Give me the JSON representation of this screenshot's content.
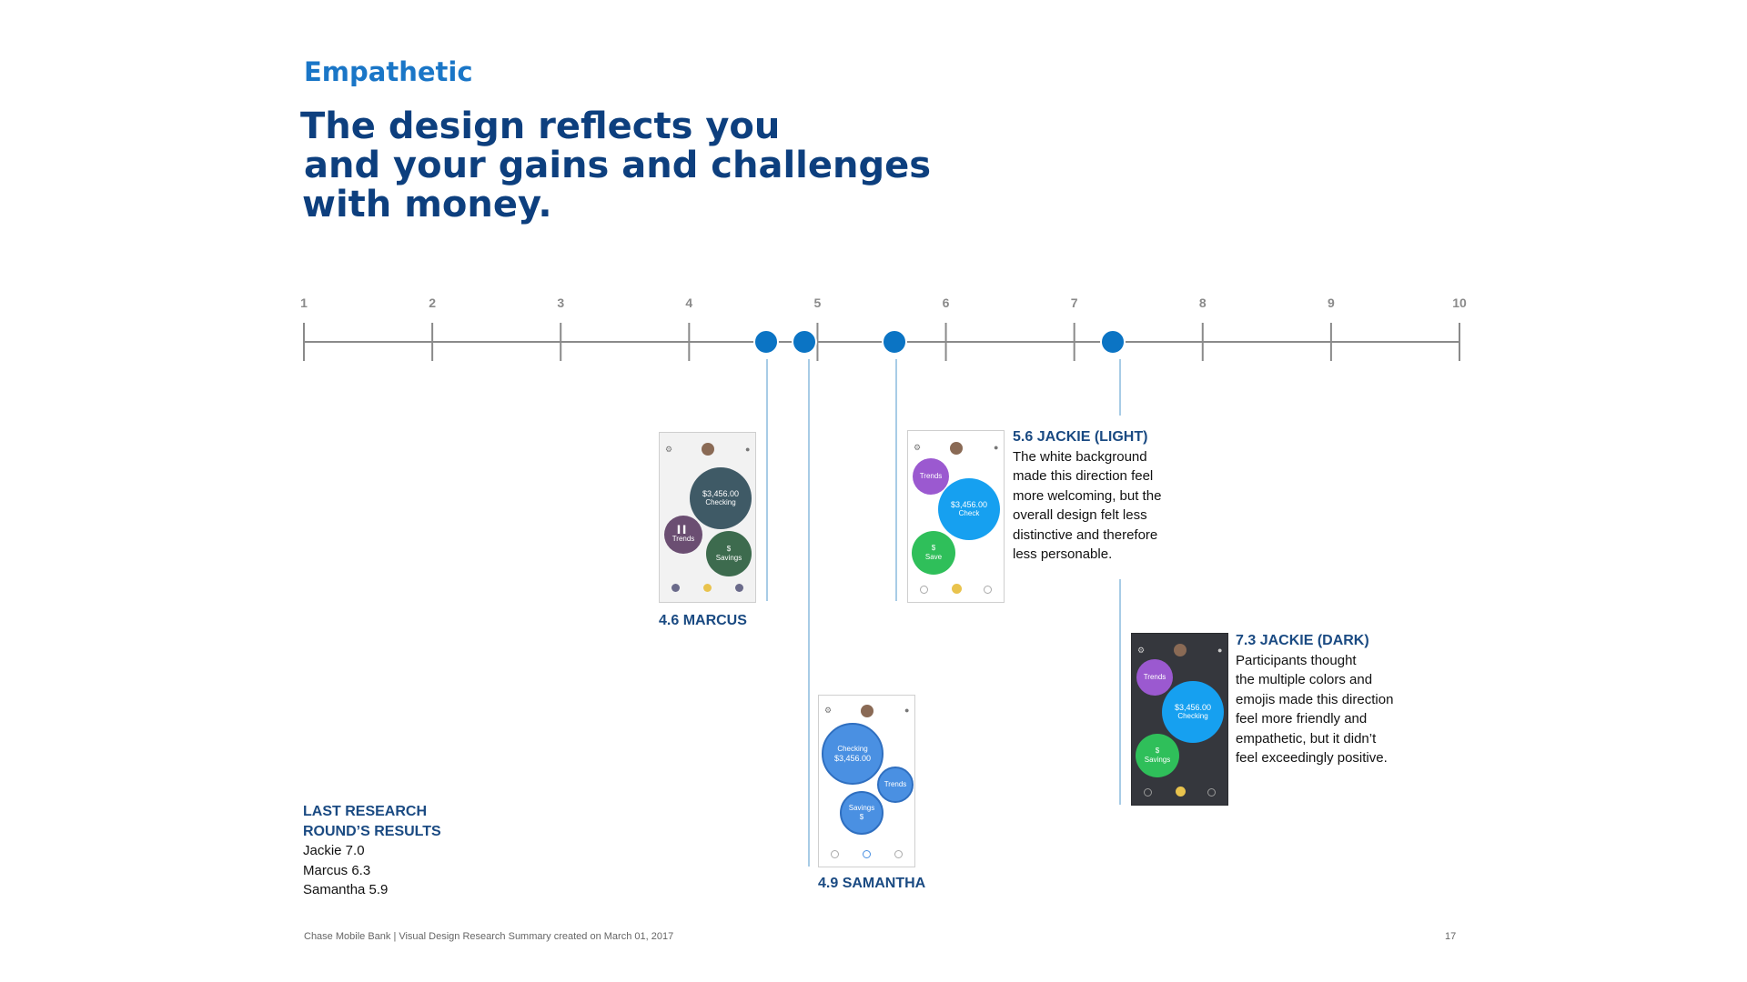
{
  "slide": {
    "eyebrow": "Empathetic",
    "headline": [
      "The design reflects you",
      "and your gains and challenges",
      "with money."
    ]
  },
  "scale": {
    "min": 1,
    "max": 10,
    "tick_labels": [
      "1",
      "2",
      "3",
      "4",
      "5",
      "6",
      "7",
      "8",
      "9",
      "10"
    ]
  },
  "markers": [
    {
      "name": "MARCUS",
      "score": 4.6,
      "label": "4.6 MARCUS"
    },
    {
      "name": "SAMANTHA",
      "score": 4.9,
      "label": "4.9 SAMANTHA"
    },
    {
      "name": "JACKIE (LIGHT)",
      "score": 5.6,
      "label": "5.6 JACKIE (LIGHT)"
    },
    {
      "name": "JACKIE (DARK)",
      "score": 7.3,
      "label": "7.3 JACKIE (DARK)"
    }
  ],
  "descriptions": {
    "jackie_light": [
      "The white background",
      "made this direction feel",
      "more welcoming, but the",
      "overall design felt less",
      "distinctive and therefore",
      "less personable."
    ],
    "jackie_dark": [
      "Participants thought",
      "the multiple colors and",
      "emojis made this direction",
      "feel more friendly and",
      "empathetic, but it didn’t",
      "feel exceedingly positive."
    ]
  },
  "phones": {
    "marcus": {
      "amount": "$3,456.00",
      "checking": "Checking",
      "trends": "Trends",
      "savings": "Savings",
      "savings_symbol": "$"
    },
    "samantha": {
      "checking": "Checking",
      "amount": "$3,456.00",
      "trends": "Trends",
      "savings": "Savings",
      "savings_symbol": "$"
    },
    "jackie_light": {
      "amount": "$3,456.00",
      "checking": "Check",
      "trends": "Trends",
      "savings": "Save",
      "savings_symbol": "$"
    },
    "jackie_dark": {
      "amount": "$3,456.00",
      "checking": "Checking",
      "trends": "Trends",
      "savings": "Savings",
      "savings_symbol": "$"
    },
    "colors": {
      "marcus_checking": "#3f5a66",
      "marcus_trends": "#6b4e72",
      "marcus_savings": "#3d6b4e",
      "samantha_bubbles": "#4a90e2",
      "jackie_trends": "#9b59d0",
      "jackie_checking": "#16a0f0",
      "jackie_savings": "#2fbf5a",
      "dark_background": "#35373d"
    }
  },
  "last_research": {
    "heading": [
      "LAST RESEARCH",
      "ROUND’S RESULTS"
    ],
    "results": [
      "Jackie 7.0",
      "Marcus 6.3",
      "Samantha 5.9"
    ]
  },
  "footer": {
    "text": "Chase Mobile Bank | Visual Design Research Summary created on March 01, 2017",
    "page_number": "17"
  },
  "colors": {
    "eyebrow": "#1a76c7",
    "headline": "#0d3f7e",
    "marker": "#0b74c4",
    "connector": "#a8cce6",
    "scale_line": "#8a8a8a"
  }
}
